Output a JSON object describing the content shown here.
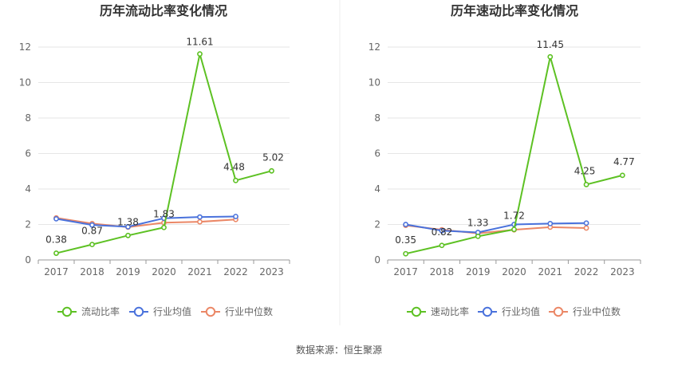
{
  "source": "数据来源：恒生聚源",
  "colors": {
    "series1": "#5dc123",
    "series2": "#4a72dc",
    "series3": "#eb8766",
    "grid": "#e6e6e6",
    "axis": "#999999"
  },
  "chart_data": [
    {
      "type": "line",
      "title": "历年流动比率变化情况",
      "categories": [
        "2017",
        "2018",
        "2019",
        "2020",
        "2021",
        "2022",
        "2023"
      ],
      "ylim": [
        0,
        12
      ],
      "yticks": [
        0,
        2,
        4,
        6,
        8,
        10,
        12
      ],
      "grid": true,
      "legend_position": "bottom",
      "series": [
        {
          "name": "流动比率",
          "values": [
            0.38,
            0.87,
            1.38,
            1.83,
            11.61,
            4.48,
            5.02
          ],
          "labels": [
            "0.38",
            "0.87",
            "1.38",
            "1.83",
            "11.61",
            "4.48",
            "5.02"
          ]
        },
        {
          "name": "行业均值",
          "values": [
            2.32,
            1.97,
            1.87,
            2.35,
            2.42,
            2.45,
            null
          ]
        },
        {
          "name": "行业中位数",
          "values": [
            2.37,
            2.05,
            1.85,
            2.1,
            2.15,
            2.28,
            null
          ]
        }
      ]
    },
    {
      "type": "line",
      "title": "历年速动比率变化情况",
      "categories": [
        "2017",
        "2018",
        "2019",
        "2020",
        "2021",
        "2022",
        "2023"
      ],
      "ylim": [
        0,
        12
      ],
      "yticks": [
        0,
        2,
        4,
        6,
        8,
        10,
        12
      ],
      "grid": true,
      "legend_position": "bottom",
      "series": [
        {
          "name": "速动比率",
          "values": [
            0.35,
            0.82,
            1.33,
            1.72,
            11.45,
            4.25,
            4.77
          ],
          "labels": [
            "0.35",
            "0.82",
            "1.33",
            "1.72",
            "11.45",
            "4.25",
            "4.77"
          ]
        },
        {
          "name": "行业均值",
          "values": [
            2.0,
            1.65,
            1.55,
            2.0,
            2.05,
            2.08,
            null
          ]
        },
        {
          "name": "行业中位数",
          "values": [
            1.95,
            1.7,
            1.5,
            1.7,
            1.85,
            1.8,
            null
          ]
        }
      ]
    }
  ]
}
